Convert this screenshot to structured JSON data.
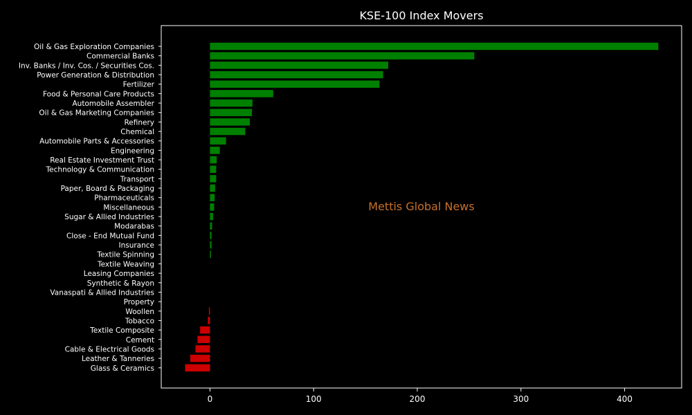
{
  "chart_data": {
    "type": "bar",
    "orientation": "horizontal",
    "title": "KSE-100 Index Movers",
    "watermark": "Mettis Global News",
    "xlabel": "",
    "ylabel": "",
    "xlim": [
      -47,
      455
    ],
    "xticks": [
      0,
      100,
      200,
      300,
      400
    ],
    "grid": false,
    "positive_color": "#008000",
    "negative_color": "#cc0000",
    "categories": [
      "Oil & Gas Exploration Companies",
      "Commercial Banks",
      "Inv. Banks / Inv. Cos. / Securities Cos.",
      "Power Generation & Distribution",
      "Fertilizer",
      "Food & Personal Care Products",
      "Automobile Assembler",
      "Oil & Gas Marketing Companies",
      "Refinery",
      "Chemical",
      "Automobile Parts & Accessories",
      "Engineering",
      "Real Estate Investment Trust",
      "Technology & Communication",
      "Transport",
      "Paper, Board & Packaging",
      "Pharmaceuticals",
      "Miscellaneous",
      "Sugar & Allied Industries",
      "Modarabas",
      "Close - End Mutual Fund",
      "Insurance",
      "Textile Spinning",
      "Textile Weaving",
      "Leasing Companies",
      "Synthetic & Rayon",
      "Vanaspati & Allied Industries",
      "Property",
      "Woollen",
      "Tobacco",
      "Textile Composite",
      "Cement",
      "Cable & Electrical Goods",
      "Leather & Tanneries",
      "Glass & Ceramics"
    ],
    "values": [
      432.5,
      255,
      172,
      167,
      163.5,
      61,
      41,
      40.5,
      38.5,
      34,
      15.5,
      9.5,
      6.5,
      6,
      6,
      5,
      4.5,
      4,
      3,
      2,
      1.5,
      1.5,
      1,
      0,
      0,
      0,
      0,
      0,
      -1,
      -2,
      -9.5,
      -12,
      -14,
      -19,
      -24
    ]
  }
}
